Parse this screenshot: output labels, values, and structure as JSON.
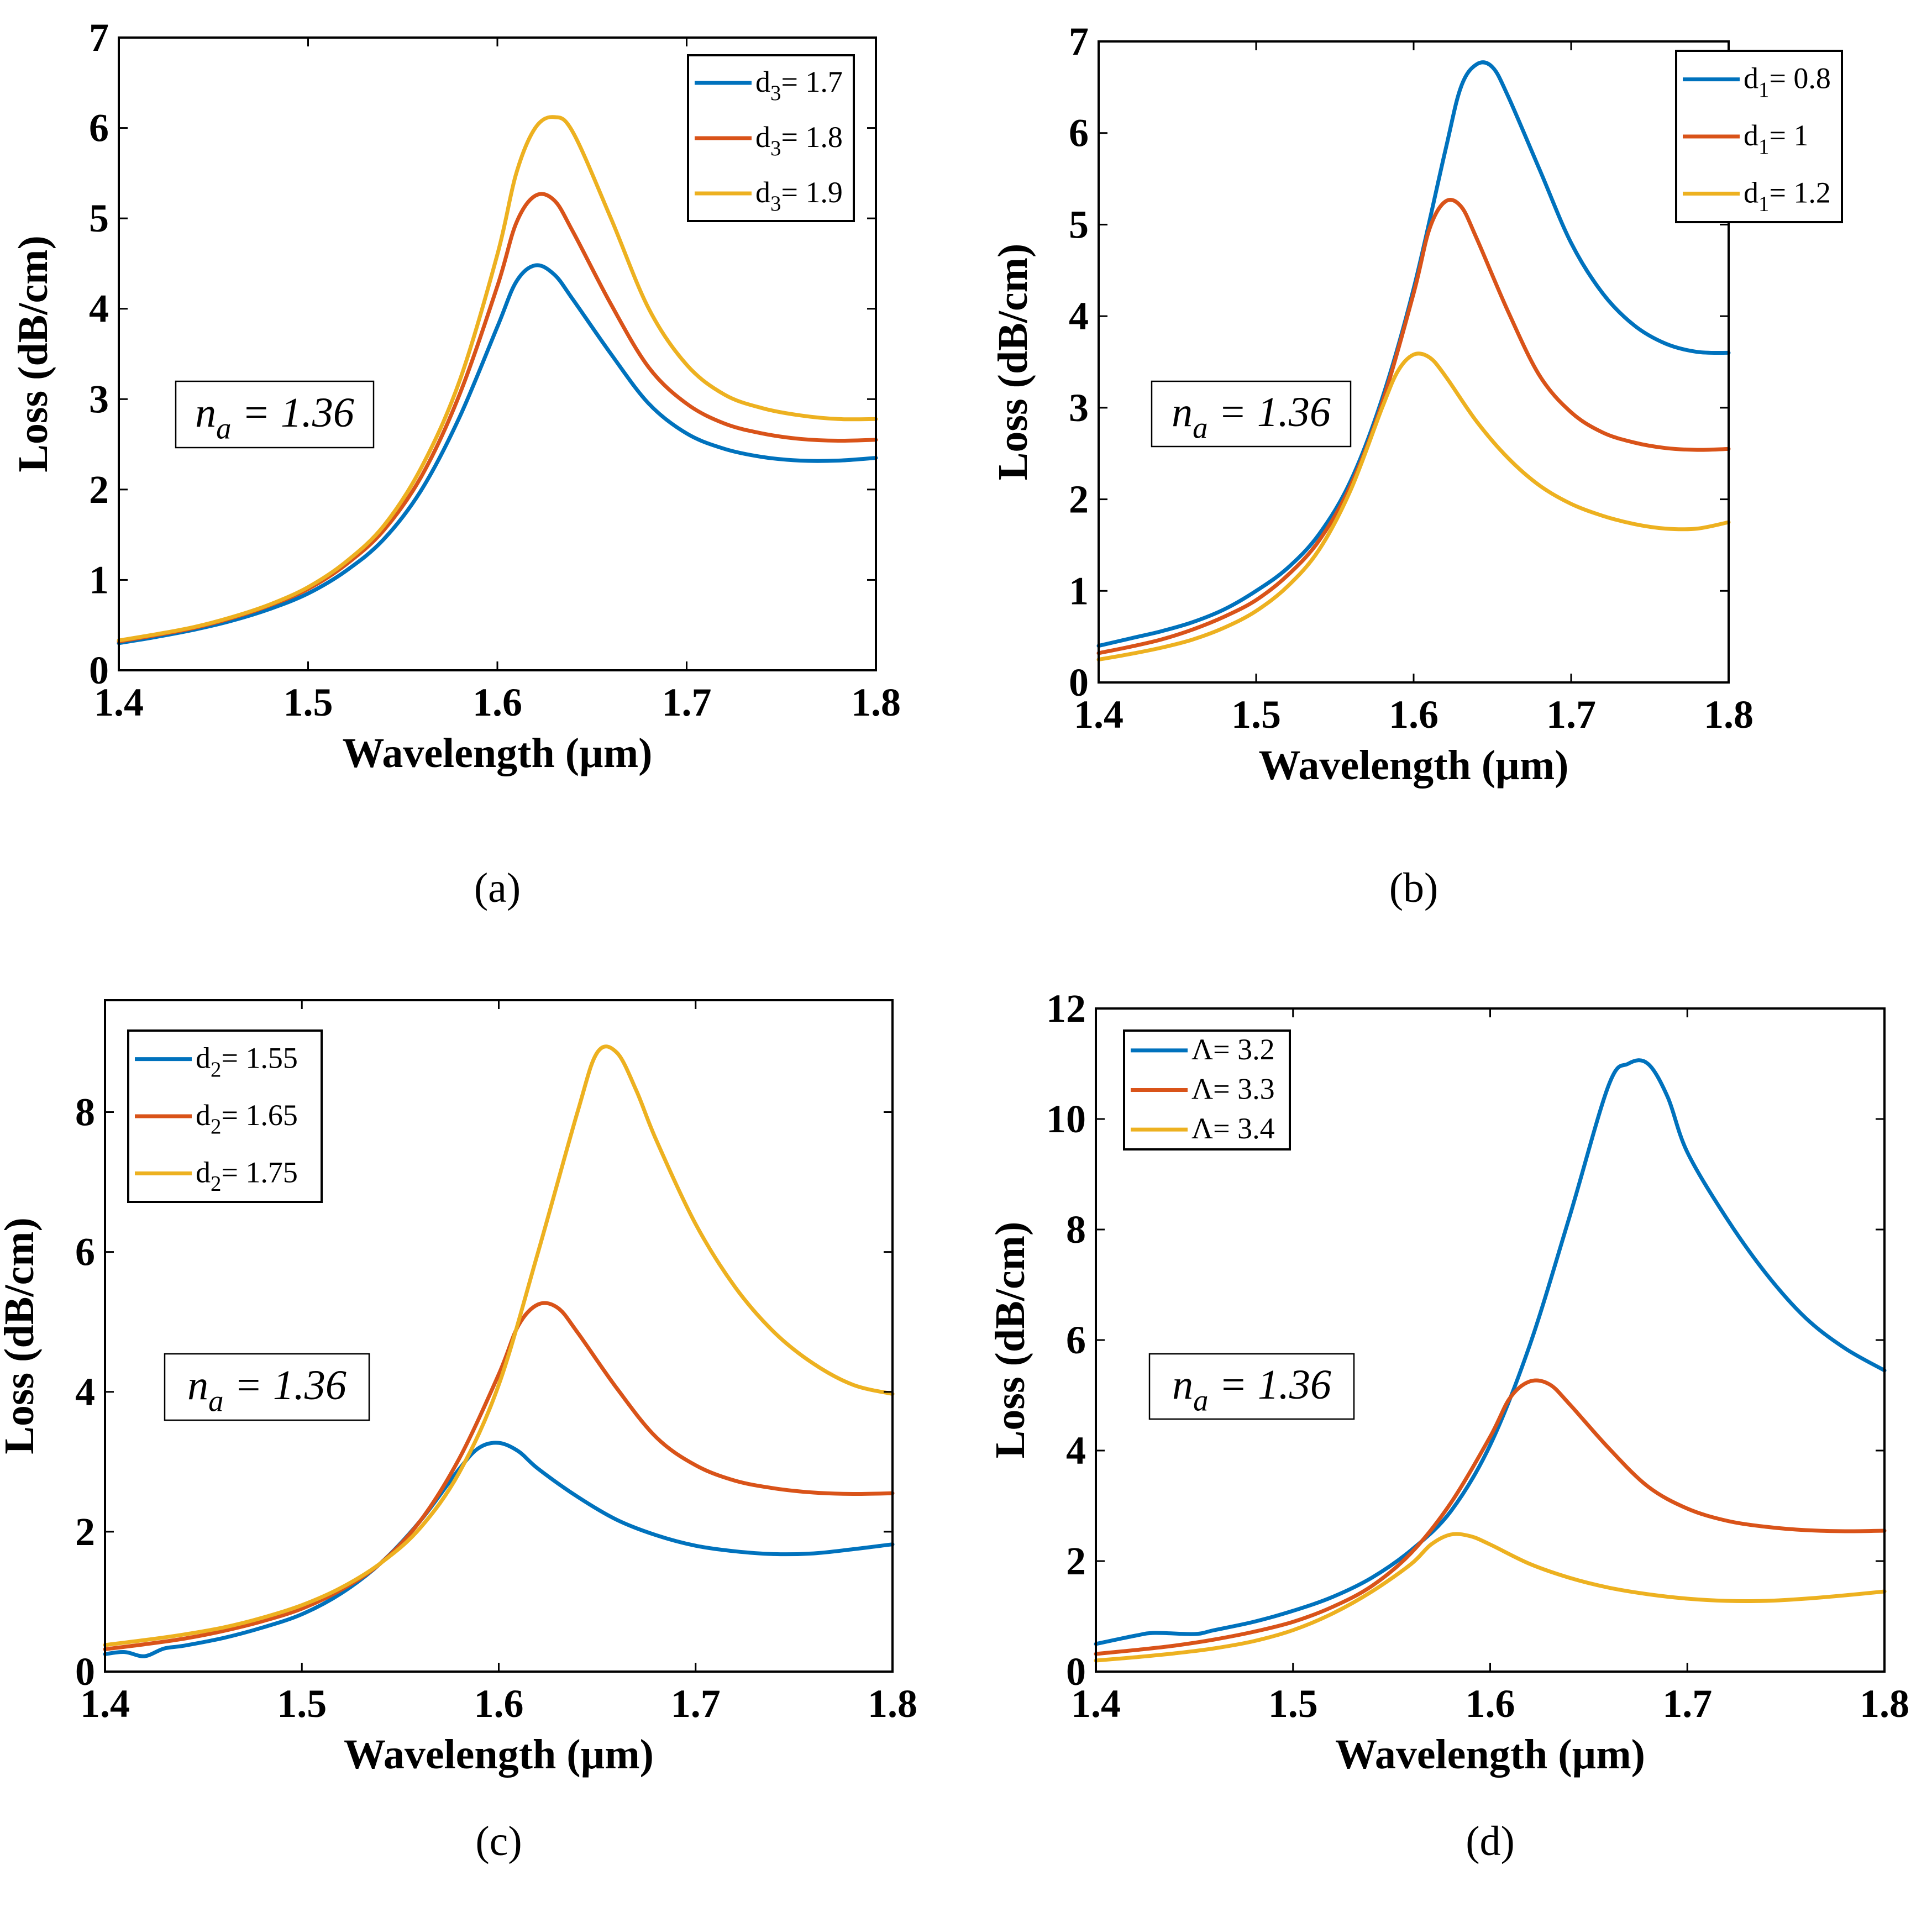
{
  "colors": {
    "blue": "#0072BD",
    "red": "#D95319",
    "yellow": "#EDB120",
    "axis": "#000000"
  },
  "chart_data": [
    {
      "type": "line",
      "panel_label": "(a)",
      "title": "",
      "xlabel": "Wavelength (µm)",
      "ylabel": "Loss (dB/cm)",
      "xlim": [
        1.4,
        1.8
      ],
      "ylim": [
        0,
        7
      ],
      "xticks": [
        "1.4",
        "1.5",
        "1.6",
        "1.7",
        "1.8"
      ],
      "yticks": [
        "0",
        "1",
        "2",
        "3",
        "4",
        "5",
        "6",
        "7"
      ],
      "annotation": {
        "base": "n",
        "sub": "a",
        "rest": " = 1.36"
      },
      "legend_position": "top-right",
      "series": [
        {
          "name": "d3= 1.7",
          "legend": {
            "base": "d",
            "sub": "3",
            "rest": "= 1.7"
          },
          "color": "#0072BD",
          "x": [
            1.4,
            1.42,
            1.44,
            1.46,
            1.48,
            1.5,
            1.52,
            1.54,
            1.56,
            1.58,
            1.6,
            1.61,
            1.62,
            1.63,
            1.64,
            1.66,
            1.68,
            1.7,
            1.72,
            1.74,
            1.76,
            1.78,
            1.8
          ],
          "y": [
            0.3,
            0.37,
            0.45,
            0.55,
            0.68,
            0.85,
            1.1,
            1.45,
            2.0,
            2.8,
            3.8,
            4.3,
            4.48,
            4.38,
            4.1,
            3.5,
            2.95,
            2.62,
            2.45,
            2.36,
            2.32,
            2.32,
            2.35
          ]
        },
        {
          "name": "d3= 1.8",
          "legend": {
            "base": "d",
            "sub": "3",
            "rest": "= 1.8"
          },
          "color": "#D95319",
          "x": [
            1.4,
            1.42,
            1.44,
            1.46,
            1.48,
            1.5,
            1.52,
            1.54,
            1.56,
            1.58,
            1.6,
            1.61,
            1.62,
            1.63,
            1.64,
            1.66,
            1.68,
            1.7,
            1.72,
            1.74,
            1.76,
            1.78,
            1.8
          ],
          "y": [
            0.32,
            0.39,
            0.47,
            0.58,
            0.72,
            0.9,
            1.17,
            1.55,
            2.15,
            3.05,
            4.25,
            4.95,
            5.25,
            5.2,
            4.85,
            4.05,
            3.35,
            2.95,
            2.73,
            2.62,
            2.56,
            2.54,
            2.55
          ]
        },
        {
          "name": "d3= 1.9",
          "legend": {
            "base": "d",
            "sub": "3",
            "rest": "= 1.9"
          },
          "color": "#EDB120",
          "x": [
            1.4,
            1.42,
            1.44,
            1.46,
            1.48,
            1.5,
            1.52,
            1.54,
            1.56,
            1.58,
            1.6,
            1.61,
            1.62,
            1.63,
            1.64,
            1.66,
            1.68,
            1.7,
            1.72,
            1.74,
            1.76,
            1.78,
            1.8
          ],
          "y": [
            0.33,
            0.4,
            0.48,
            0.59,
            0.73,
            0.92,
            1.2,
            1.6,
            2.25,
            3.2,
            4.6,
            5.5,
            6.0,
            6.12,
            5.95,
            5.0,
            4.0,
            3.38,
            3.05,
            2.9,
            2.82,
            2.78,
            2.78
          ]
        }
      ]
    },
    {
      "type": "line",
      "panel_label": "(b)",
      "title": "",
      "xlabel": "Wavelength (µm)",
      "ylabel": "Loss (dB/cm)",
      "xlim": [
        1.4,
        1.8
      ],
      "ylim": [
        0,
        7
      ],
      "xticks": [
        "1.4",
        "1.5",
        "1.6",
        "1.7",
        "1.8"
      ],
      "yticks": [
        "0",
        "1",
        "2",
        "3",
        "4",
        "5",
        "6",
        "7"
      ],
      "annotation": {
        "base": "n",
        "sub": "a",
        "rest": " = 1.36"
      },
      "legend_position": "top-right",
      "series": [
        {
          "name": "d1= 0.8",
          "legend": {
            "base": "d",
            "sub": "1",
            "rest": "= 0.8"
          },
          "color": "#0072BD",
          "x": [
            1.4,
            1.42,
            1.44,
            1.46,
            1.48,
            1.5,
            1.52,
            1.54,
            1.56,
            1.58,
            1.6,
            1.62,
            1.63,
            1.64,
            1.65,
            1.66,
            1.68,
            1.7,
            1.72,
            1.74,
            1.76,
            1.78,
            1.8
          ],
          "y": [
            0.4,
            0.48,
            0.56,
            0.66,
            0.8,
            1.0,
            1.25,
            1.62,
            2.2,
            3.1,
            4.3,
            5.8,
            6.5,
            6.75,
            6.72,
            6.4,
            5.6,
            4.8,
            4.25,
            3.9,
            3.7,
            3.61,
            3.6
          ]
        },
        {
          "name": "d1= 1",
          "legend": {
            "base": "d",
            "sub": "1",
            "rest": "= 1"
          },
          "color": "#D95319",
          "x": [
            1.4,
            1.42,
            1.44,
            1.46,
            1.48,
            1.5,
            1.52,
            1.54,
            1.56,
            1.58,
            1.6,
            1.61,
            1.62,
            1.63,
            1.64,
            1.66,
            1.68,
            1.7,
            1.72,
            1.74,
            1.76,
            1.78,
            1.8
          ],
          "y": [
            0.32,
            0.39,
            0.47,
            0.58,
            0.72,
            0.9,
            1.17,
            1.55,
            2.15,
            3.05,
            4.25,
            4.95,
            5.25,
            5.2,
            4.85,
            4.05,
            3.35,
            2.95,
            2.73,
            2.62,
            2.56,
            2.54,
            2.55
          ]
        },
        {
          "name": "d1= 1.2",
          "legend": {
            "base": "d",
            "sub": "1",
            "rest": "= 1.2"
          },
          "color": "#EDB120",
          "x": [
            1.4,
            1.42,
            1.44,
            1.46,
            1.48,
            1.5,
            1.52,
            1.54,
            1.56,
            1.58,
            1.59,
            1.6,
            1.61,
            1.62,
            1.64,
            1.66,
            1.68,
            1.7,
            1.72,
            1.74,
            1.76,
            1.78,
            1.8
          ],
          "y": [
            0.25,
            0.31,
            0.38,
            0.47,
            0.6,
            0.78,
            1.05,
            1.45,
            2.1,
            3.0,
            3.4,
            3.58,
            3.55,
            3.35,
            2.85,
            2.45,
            2.15,
            1.95,
            1.82,
            1.73,
            1.68,
            1.68,
            1.75
          ]
        }
      ]
    },
    {
      "type": "line",
      "panel_label": "(c)",
      "title": "",
      "xlabel": "Wavelength (µm)",
      "ylabel": "Loss (dB/cm)",
      "xlim": [
        1.4,
        1.8
      ],
      "ylim": [
        0,
        9.6
      ],
      "xticks": [
        "1.4",
        "1.5",
        "1.6",
        "1.7",
        "1.8"
      ],
      "yticks": [
        "0",
        "2",
        "4",
        "6",
        "8"
      ],
      "annotation": {
        "base": "n",
        "sub": "a",
        "rest": " = 1.36"
      },
      "legend_position": "top-left",
      "series": [
        {
          "name": "d2= 1.55",
          "legend": {
            "base": "d",
            "sub": "2",
            "rest": "= 1.55"
          },
          "color": "#0072BD",
          "x": [
            1.4,
            1.41,
            1.42,
            1.43,
            1.44,
            1.46,
            1.48,
            1.5,
            1.52,
            1.54,
            1.56,
            1.58,
            1.59,
            1.6,
            1.61,
            1.62,
            1.64,
            1.66,
            1.68,
            1.7,
            1.72,
            1.74,
            1.76,
            1.78,
            1.8
          ],
          "y": [
            0.25,
            0.28,
            0.22,
            0.33,
            0.37,
            0.48,
            0.63,
            0.82,
            1.12,
            1.55,
            2.15,
            2.9,
            3.2,
            3.27,
            3.15,
            2.9,
            2.5,
            2.17,
            1.95,
            1.8,
            1.72,
            1.68,
            1.69,
            1.75,
            1.82
          ]
        },
        {
          "name": "d2= 1.65",
          "legend": {
            "base": "d",
            "sub": "2",
            "rest": "= 1.65"
          },
          "color": "#D95319",
          "x": [
            1.4,
            1.42,
            1.44,
            1.46,
            1.48,
            1.5,
            1.52,
            1.54,
            1.56,
            1.58,
            1.6,
            1.61,
            1.62,
            1.63,
            1.64,
            1.66,
            1.68,
            1.7,
            1.72,
            1.74,
            1.76,
            1.78,
            1.8
          ],
          "y": [
            0.32,
            0.39,
            0.47,
            0.58,
            0.72,
            0.9,
            1.17,
            1.55,
            2.15,
            3.05,
            4.25,
            4.95,
            5.25,
            5.2,
            4.85,
            4.05,
            3.35,
            2.95,
            2.73,
            2.62,
            2.56,
            2.54,
            2.55
          ]
        },
        {
          "name": "d2= 1.75",
          "legend": {
            "base": "d",
            "sub": "2",
            "rest": "= 1.75"
          },
          "color": "#EDB120",
          "x": [
            1.4,
            1.42,
            1.44,
            1.46,
            1.48,
            1.5,
            1.52,
            1.54,
            1.56,
            1.58,
            1.6,
            1.62,
            1.64,
            1.65,
            1.66,
            1.67,
            1.68,
            1.7,
            1.72,
            1.74,
            1.76,
            1.78,
            1.8
          ],
          "y": [
            0.38,
            0.45,
            0.53,
            0.63,
            0.77,
            0.95,
            1.2,
            1.55,
            2.05,
            2.85,
            4.1,
            6.0,
            8.0,
            8.85,
            8.85,
            8.3,
            7.6,
            6.4,
            5.5,
            4.85,
            4.4,
            4.1,
            3.97
          ]
        }
      ]
    },
    {
      "type": "line",
      "panel_label": "(d)",
      "title": "",
      "xlabel": "Wavelength (µm)",
      "ylabel": "Loss (dB/cm)",
      "xlim": [
        1.4,
        1.8
      ],
      "ylim": [
        0,
        12
      ],
      "xticks": [
        "1.4",
        "1.5",
        "1.6",
        "1.7",
        "1.8"
      ],
      "yticks": [
        "0",
        "2",
        "4",
        "6",
        "8",
        "10",
        "12"
      ],
      "annotation": {
        "base": "n",
        "sub": "a",
        "rest": " = 1.36"
      },
      "legend_position": "top-left",
      "series": [
        {
          "name": "Λ= 3.2",
          "legend": {
            "base": "Λ= 3.2",
            "sub": "",
            "rest": ""
          },
          "color": "#0072BD",
          "x": [
            1.4,
            1.42,
            1.43,
            1.45,
            1.46,
            1.48,
            1.5,
            1.52,
            1.54,
            1.56,
            1.58,
            1.6,
            1.62,
            1.64,
            1.66,
            1.67,
            1.68,
            1.69,
            1.7,
            1.72,
            1.74,
            1.76,
            1.78,
            1.8
          ],
          "y": [
            0.5,
            0.65,
            0.7,
            0.68,
            0.75,
            0.9,
            1.1,
            1.35,
            1.7,
            2.2,
            2.9,
            4.1,
            5.9,
            8.2,
            10.6,
            11.0,
            11.0,
            10.4,
            9.4,
            8.2,
            7.2,
            6.4,
            5.85,
            5.45
          ]
        },
        {
          "name": "Λ= 3.3",
          "legend": {
            "base": "Λ= 3.3",
            "sub": "",
            "rest": ""
          },
          "color": "#D95319",
          "x": [
            1.4,
            1.42,
            1.44,
            1.46,
            1.48,
            1.5,
            1.52,
            1.54,
            1.56,
            1.58,
            1.6,
            1.61,
            1.62,
            1.63,
            1.64,
            1.66,
            1.68,
            1.7,
            1.72,
            1.74,
            1.76,
            1.78,
            1.8
          ],
          "y": [
            0.32,
            0.39,
            0.47,
            0.58,
            0.72,
            0.9,
            1.17,
            1.55,
            2.15,
            3.05,
            4.25,
            4.95,
            5.25,
            5.2,
            4.85,
            4.05,
            3.35,
            2.95,
            2.73,
            2.62,
            2.56,
            2.54,
            2.55
          ]
        },
        {
          "name": "Λ= 3.4",
          "legend": {
            "base": "Λ= 3.4",
            "sub": "",
            "rest": ""
          },
          "color": "#EDB120",
          "x": [
            1.4,
            1.42,
            1.44,
            1.46,
            1.48,
            1.5,
            1.52,
            1.54,
            1.56,
            1.57,
            1.58,
            1.59,
            1.6,
            1.62,
            1.64,
            1.66,
            1.68,
            1.7,
            1.72,
            1.74,
            1.76,
            1.78,
            1.8
          ],
          "y": [
            0.2,
            0.26,
            0.33,
            0.42,
            0.55,
            0.75,
            1.05,
            1.45,
            1.95,
            2.3,
            2.48,
            2.45,
            2.3,
            1.95,
            1.7,
            1.52,
            1.4,
            1.32,
            1.28,
            1.28,
            1.32,
            1.38,
            1.45
          ]
        }
      ]
    }
  ]
}
